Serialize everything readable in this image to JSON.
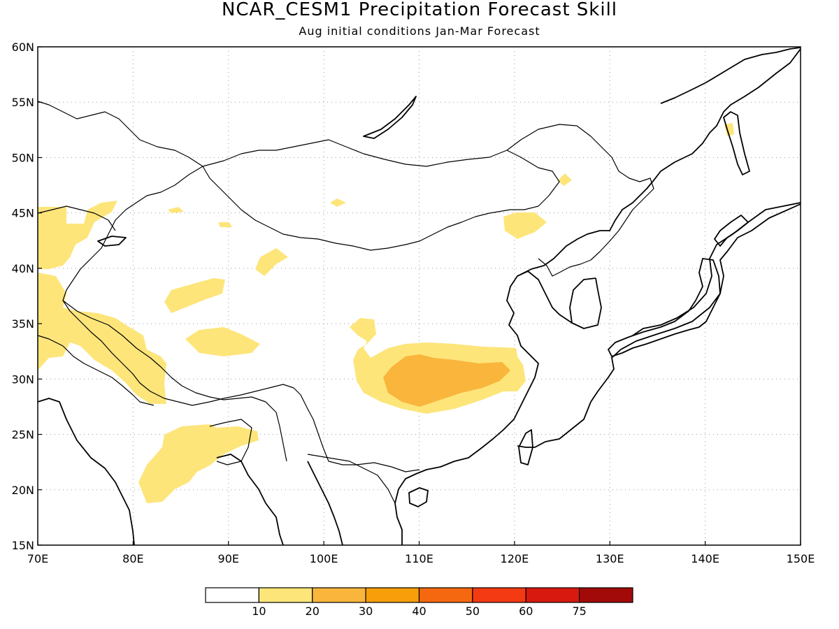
{
  "title": "NCAR_CESM1 Precipitation Forecast Skill",
  "subtitle": "Aug initial conditions  Jan-Mar Forecast",
  "map": {
    "lon_range": [
      70,
      150
    ],
    "lat_range": [
      15,
      60
    ],
    "lon_ticks": [
      "70E",
      "80E",
      "90E",
      "100E",
      "110E",
      "120E",
      "130E",
      "140E",
      "150E"
    ],
    "lat_ticks": [
      "15N",
      "20N",
      "25N",
      "30N",
      "35N",
      "40N",
      "45N",
      "50N",
      "55N",
      "60N"
    ],
    "grid": true
  },
  "legend": {
    "labels": [
      "10",
      "20",
      "30",
      "40",
      "50",
      "60",
      "75"
    ],
    "colors": [
      "#ffffff",
      "#fde57a",
      "#f9b53c",
      "#f79e0a",
      "#f6680f",
      "#f33a12",
      "#d7190f",
      "#a20a09"
    ]
  },
  "skill_regions": [
    {
      "name": "central-china-band",
      "level": "10-20"
    },
    {
      "name": "central-china-core",
      "level": "20-30"
    }
  ]
}
